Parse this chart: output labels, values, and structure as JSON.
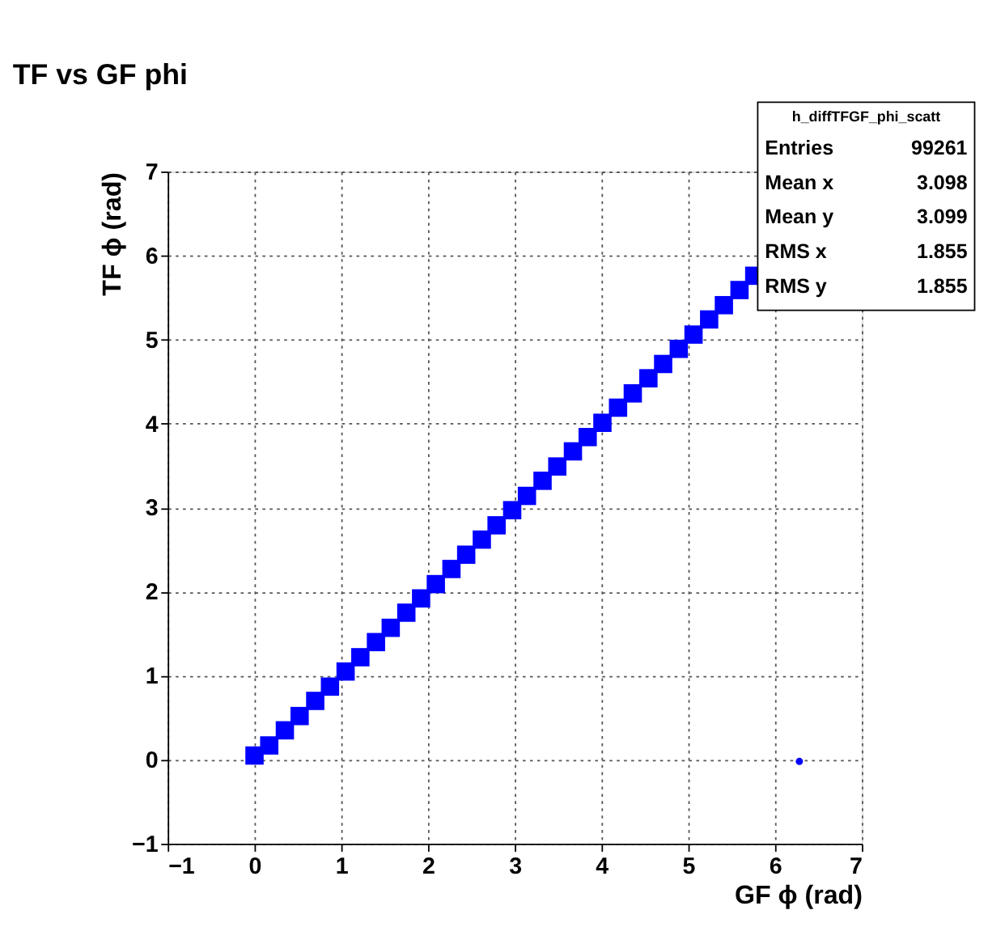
{
  "chart_data": {
    "type": "scatter",
    "title": "TF vs GF phi",
    "xlabel": "GF ϕ (rad)",
    "ylabel": "TF ϕ (rad)",
    "series": [
      {
        "color": "#0000ff",
        "marker": "square",
        "x": [
          0.0,
          0.17,
          0.35,
          0.52,
          0.7,
          0.87,
          1.05,
          1.22,
          1.4,
          1.57,
          1.75,
          1.92,
          2.09,
          2.27,
          2.44,
          2.62,
          2.79,
          2.97,
          3.14,
          3.32,
          3.49,
          3.67,
          3.84,
          4.01,
          4.19,
          4.36,
          4.54,
          4.71,
          4.89,
          5.06,
          5.24,
          5.41,
          5.59,
          5.76
        ],
        "values": [
          0.05,
          0.17,
          0.35,
          0.52,
          0.7,
          0.87,
          1.05,
          1.22,
          1.4,
          1.57,
          1.75,
          1.92,
          2.09,
          2.27,
          2.44,
          2.62,
          2.79,
          2.97,
          3.14,
          3.32,
          3.49,
          3.67,
          3.84,
          4.01,
          4.19,
          4.36,
          4.54,
          4.71,
          4.89,
          5.06,
          5.24,
          5.41,
          5.59,
          5.76
        ]
      },
      {
        "color": "#0000ff",
        "marker": "circle",
        "x": [
          6.28
        ],
        "values": [
          -0.02
        ]
      }
    ],
    "xlim": [
      -1,
      7
    ],
    "ylim": [
      -1,
      7
    ],
    "xticks": [
      -1,
      0,
      1,
      2,
      3,
      4,
      5,
      6,
      7
    ],
    "yticks": [
      -1,
      0,
      1,
      2,
      3,
      4,
      5,
      6,
      7
    ],
    "grid": true,
    "annotations": [
      "h_diffTFGF_phi_scatt",
      "Entries 99261",
      "Mean x 3.098",
      "Mean y 3.099",
      "RMS x 1.855",
      "RMS y 1.855"
    ]
  }
}
